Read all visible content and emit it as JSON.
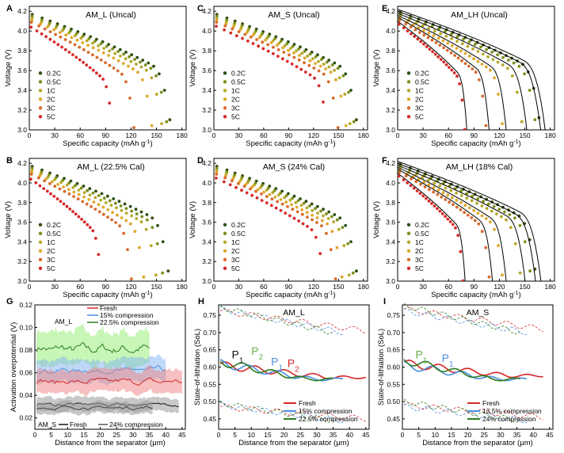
{
  "figure_colors": {
    "c_rates": [
      "#2f4f12",
      "#7c8f1c",
      "#b5a828",
      "#e0a72c",
      "#d86a2c",
      "#d62a2a"
    ],
    "fresh": "#d62728",
    "comp1": "#4a8fe0",
    "comp2": "#2e7d1f",
    "fresh_band": "#f08080",
    "comp1_band": "#7fb2f0",
    "comp2_band": "#90ee70",
    "ams_band": "#9a9a9a"
  },
  "chart_data": [
    {
      "panel": "A",
      "type": "scatter",
      "title": "AM_L (Uncal)",
      "xlabel": "Specific capacity (mAh g",
      "xlabel_sup": "-1",
      "xlabel_end": ")",
      "ylabel": "Voltage (V)",
      "xlim": [
        0,
        185
      ],
      "ylim": [
        3.0,
        4.25
      ],
      "xticks": [
        0,
        30,
        60,
        90,
        120,
        150,
        180
      ],
      "yticks": [
        3.0,
        3.2,
        3.4,
        3.6,
        3.8,
        4.0,
        4.2
      ],
      "legend": [
        "0.2C",
        "0.5C",
        "1C",
        "2C",
        "3C",
        "5C"
      ],
      "v_start": [
        4.18,
        4.16,
        4.14,
        4.12,
        4.1,
        4.05
      ],
      "capacities": [
        172,
        168,
        162,
        150,
        128,
        102
      ],
      "model_lines": false
    },
    {
      "panel": "C",
      "type": "scatter",
      "title": "AM_S (Uncal)",
      "xlabel": "Specific capacity (mAh g",
      "xlabel_sup": "-1",
      "xlabel_end": ")",
      "ylabel": "Voltage (V)",
      "xlim": [
        0,
        185
      ],
      "ylim": [
        3.0,
        4.25
      ],
      "xticks": [
        0,
        30,
        60,
        90,
        120,
        150,
        180
      ],
      "yticks": [
        3.0,
        3.2,
        3.4,
        3.6,
        3.8,
        4.0,
        4.2
      ],
      "legend": [
        "0.2C",
        "0.5C",
        "1C",
        "2C",
        "3C",
        "5C"
      ],
      "v_start": [
        4.18,
        4.16,
        4.14,
        4.12,
        4.1,
        4.06
      ],
      "capacities": [
        178,
        175,
        170,
        165,
        155,
        142
      ],
      "model_lines": false
    },
    {
      "panel": "E",
      "type": "scatter",
      "title": "AM_LH (Uncal)",
      "xlabel": "Specific capacity (mAh g",
      "xlabel_sup": "-1",
      "xlabel_end": ")",
      "ylabel": "Voltage (V)",
      "xlim": [
        0,
        185
      ],
      "ylim": [
        3.0,
        4.25
      ],
      "xticks": [
        0,
        30,
        60,
        90,
        120,
        150,
        180
      ],
      "yticks": [
        3.0,
        3.2,
        3.4,
        3.6,
        3.8,
        4.0,
        4.2
      ],
      "legend": [
        "0.2C",
        "0.5C",
        "1C",
        "2C",
        "3C",
        "5C"
      ],
      "v_start": [
        4.2,
        4.18,
        4.16,
        4.14,
        4.12,
        4.08
      ],
      "capacities": [
        173,
        168,
        152,
        128,
        108,
        82
      ],
      "model_lines": true
    },
    {
      "panel": "B",
      "type": "scatter",
      "title": "AM_L (22.5% Cal)",
      "xlabel": "Specific capacity (mAh g",
      "xlabel_sup": "-1",
      "xlabel_end": ")",
      "ylabel": "Voltage (V)",
      "xlim": [
        0,
        185
      ],
      "ylim": [
        3.0,
        4.25
      ],
      "xticks": [
        0,
        30,
        60,
        90,
        120,
        150,
        180
      ],
      "yticks": [
        3.0,
        3.2,
        3.4,
        3.6,
        3.8,
        4.0,
        4.2
      ],
      "legend": [
        "0.2C",
        "0.5C",
        "1C",
        "2C",
        "3C",
        "5C"
      ],
      "v_start": [
        4.18,
        4.16,
        4.14,
        4.12,
        4.1,
        4.05
      ],
      "capacities": [
        170,
        163,
        155,
        140,
        125,
        88
      ],
      "model_lines": false
    },
    {
      "panel": "D",
      "type": "scatter",
      "title": "AM_S (24% Cal)",
      "xlabel": "Specific capacity (mAh g",
      "xlabel_sup": "-1",
      "xlabel_end": ")",
      "ylabel": "Voltage (V)",
      "xlim": [
        0,
        185
      ],
      "ylim": [
        3.0,
        4.25
      ],
      "xticks": [
        0,
        30,
        60,
        90,
        120,
        150,
        180
      ],
      "yticks": [
        3.0,
        3.2,
        3.4,
        3.6,
        3.8,
        4.0,
        4.2
      ],
      "legend": [
        "0.2C",
        "0.5C",
        "1C",
        "2C",
        "3C",
        "5C"
      ],
      "v_start": [
        4.18,
        4.16,
        4.14,
        4.12,
        4.1,
        4.06
      ],
      "capacities": [
        178,
        174,
        169,
        160,
        152,
        138
      ],
      "model_lines": false
    },
    {
      "panel": "F",
      "type": "scatter",
      "title": "AM_LH (18% Cal)",
      "xlabel": "Specific capacity (mAh g",
      "xlabel_sup": "-1",
      "xlabel_end": ")",
      "ylabel": "Voltage (V)",
      "xlim": [
        0,
        185
      ],
      "ylim": [
        3.0,
        4.25
      ],
      "xticks": [
        0,
        30,
        60,
        90,
        120,
        150,
        180
      ],
      "yticks": [
        3.0,
        3.2,
        3.4,
        3.6,
        3.8,
        4.0,
        4.2
      ],
      "legend": [
        "0.2C",
        "0.5C",
        "1C",
        "2C",
        "3C",
        "5C"
      ],
      "v_start": [
        4.2,
        4.18,
        4.16,
        4.14,
        4.12,
        4.08
      ],
      "capacities": [
        168,
        162,
        150,
        128,
        112,
        80
      ],
      "model_lines": true
    },
    {
      "panel": "G",
      "type": "line",
      "xlabel": "Distance from the separator (μm)",
      "ylabel": "Activation overpotential (V)",
      "xlim": [
        0,
        46
      ],
      "ylim": [
        0.01,
        0.12
      ],
      "xticks": [
        0,
        5,
        10,
        15,
        20,
        25,
        30,
        35,
        40,
        45
      ],
      "yticks": [
        0.02,
        0.04,
        0.06,
        0.08,
        0.1,
        0.12
      ],
      "label_top": "AM_L",
      "label_bottom": "AM_S",
      "legend_top": [
        "Fresh",
        "15% compression",
        "22.5% compression"
      ],
      "legend_bottom": [
        "Fresh",
        "24% compression"
      ],
      "series": [
        {
          "name": "22.5% compression",
          "x_end": 35,
          "mean": 0.081,
          "band": 0.015
        },
        {
          "name": "15% compression",
          "x_end": 40,
          "mean": 0.062,
          "band": 0.01
        },
        {
          "name": "Fresh",
          "x_end": 45,
          "mean": 0.052,
          "band": 0.01
        },
        {
          "name": "AM_S Fresh",
          "x_end": 44,
          "mean": 0.032,
          "band": 0.006
        },
        {
          "name": "AM_S 24% compression",
          "x_end": 36,
          "mean": 0.029,
          "band": 0.005
        }
      ]
    },
    {
      "panel": "H",
      "type": "line",
      "title": "AM_L",
      "xlabel": "Distance from the separator (μm)",
      "ylabel": "State-of-lithiation (SoL)",
      "xlim": [
        0,
        46
      ],
      "ylim": [
        0.42,
        0.78
      ],
      "xticks": [
        0,
        5,
        10,
        15,
        20,
        25,
        30,
        35,
        40,
        45
      ],
      "yticks": [
        0.45,
        0.5,
        0.55,
        0.6,
        0.65,
        0.7,
        0.75
      ],
      "legend": [
        "Fresh",
        "15% compression",
        "22.5% compression"
      ],
      "annotations": [
        "P",
        "P",
        "P",
        "P"
      ],
      "annotation_subs": [
        "1",
        "2",
        "1",
        "2"
      ],
      "series": [
        {
          "name": "Fresh",
          "x_end": 45,
          "mean_start": 0.605,
          "mean_end": 0.57
        },
        {
          "name": "15% compression",
          "x_end": 38,
          "mean_start": 0.61,
          "mean_end": 0.565
        },
        {
          "name": "22.5% compression",
          "x_end": 35,
          "mean_start": 0.615,
          "mean_end": 0.565
        }
      ]
    },
    {
      "panel": "I",
      "type": "line",
      "title": "AM_S",
      "xlabel": "Distance from the separator (μm)",
      "ylabel": "State-of-lithiation (SoL)",
      "xlim": [
        0,
        46
      ],
      "ylim": [
        0.42,
        0.78
      ],
      "xticks": [
        0,
        5,
        10,
        15,
        20,
        25,
        30,
        35,
        40,
        45
      ],
      "yticks": [
        0.45,
        0.5,
        0.55,
        0.6,
        0.65,
        0.7,
        0.75
      ],
      "legend": [
        "Fresh",
        "13.5% compression",
        "24% compression"
      ],
      "annotations": [
        "P",
        "P"
      ],
      "annotation_subs": [
        "1",
        "1"
      ],
      "series": [
        {
          "name": "Fresh",
          "x_end": 43,
          "mean_start": 0.61,
          "mean_end": 0.575
        },
        {
          "name": "13.5% compression",
          "x_end": 38,
          "mean_start": 0.605,
          "mean_end": 0.565
        },
        {
          "name": "24% compression",
          "x_end": 36,
          "mean_start": 0.62,
          "mean_end": 0.565
        }
      ]
    }
  ]
}
